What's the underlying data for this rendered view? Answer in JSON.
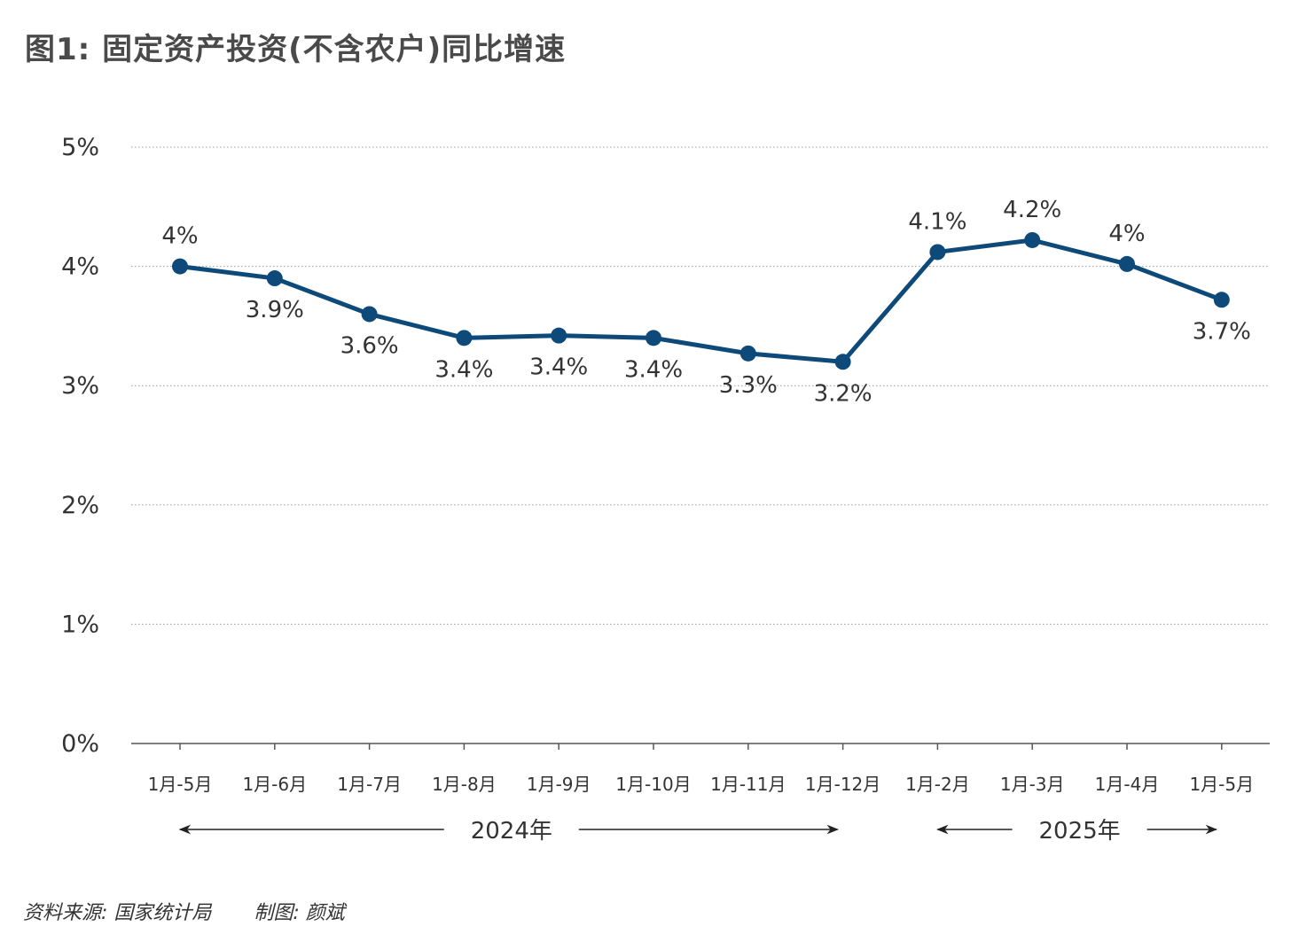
{
  "title": "图1: 固定资产投资(不含农户)同比增速",
  "footer": {
    "source": "资料来源: 国家统计局",
    "author": "制图: 颜斌"
  },
  "chart_data": {
    "type": "line",
    "title": "图1: 固定资产投资(不含农户)同比增速",
    "categories": [
      "1月-5月",
      "1月-6月",
      "1月-7月",
      "1月-8月",
      "1月-9月",
      "1月-10月",
      "1月-11月",
      "1月-12月",
      "1月-2月",
      "1月-3月",
      "1月-4月",
      "1月-5月"
    ],
    "series": [
      {
        "values": [
          4.0,
          3.9,
          3.6,
          3.4,
          3.42,
          3.4,
          3.27,
          3.2,
          4.12,
          4.22,
          4.02,
          3.72
        ]
      }
    ],
    "data_labels": [
      "4%",
      "3.9%",
      "3.6%",
      "3.4%",
      "3.4%",
      "3.4%",
      "3.3%",
      "3.2%",
      "4.1%",
      "4.2%",
      "4%",
      "3.7%"
    ],
    "label_positions": [
      "above",
      "below",
      "below",
      "below",
      "below",
      "below",
      "below",
      "below",
      "above",
      "above",
      "above",
      "below"
    ],
    "y_ticks": [
      "0%",
      "1%",
      "2%",
      "3%",
      "4%",
      "5%"
    ],
    "ylim": [
      0,
      5
    ],
    "grid": true,
    "year_groups": [
      {
        "label": "2024年",
        "from": 0,
        "to": 7
      },
      {
        "label": "2025年",
        "from": 8,
        "to": 11
      }
    ],
    "colors": {
      "line": "#0d4a7a",
      "grid": "#999999",
      "axis": "#555555"
    }
  }
}
